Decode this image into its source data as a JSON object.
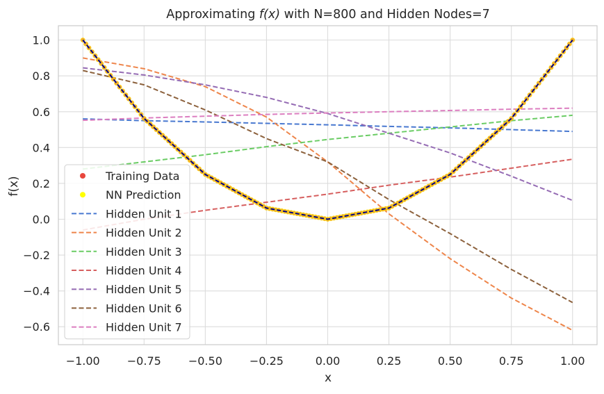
{
  "chart_data": {
    "type": "line",
    "title_prefix": "Approximating ",
    "title_math": "f(x)",
    "title_suffix": " with N=800 and Hidden Nodes=7",
    "xlabel": "x",
    "ylabel": "f(x)",
    "xlim": [
      -1.1,
      1.1
    ],
    "ylim": [
      -0.7,
      1.08
    ],
    "grid": true,
    "legend_position": "lower-left",
    "xticks": [
      -1.0,
      -0.75,
      -0.5,
      -0.25,
      0.0,
      0.25,
      0.5,
      0.75,
      1.0
    ],
    "xtick_labels": [
      "−1.00",
      "−0.75",
      "−0.50",
      "−0.25",
      "0.00",
      "0.25",
      "0.50",
      "0.75",
      "1.00"
    ],
    "yticks": [
      -0.6,
      -0.4,
      -0.2,
      0.0,
      0.2,
      0.4,
      0.6,
      0.8,
      1.0
    ],
    "ytick_labels": [
      "−0.6",
      "−0.4",
      "−0.2",
      "0.0",
      "0.2",
      "0.4",
      "0.6",
      "0.8",
      "1.0"
    ],
    "x": [
      -1.0,
      -0.75,
      -0.5,
      -0.25,
      0.0,
      0.25,
      0.5,
      0.75,
      1.0
    ],
    "training_data": {
      "name": "Training Data",
      "color": "#e8473d",
      "y": [
        1.0,
        0.5625,
        0.25,
        0.0625,
        0.0,
        0.0625,
        0.25,
        0.5625,
        1.0
      ]
    },
    "nn_prediction": {
      "name": "NN Prediction",
      "color": "#ffff00",
      "y": [
        1.0,
        0.5625,
        0.25,
        0.0625,
        0.0,
        0.0625,
        0.25,
        0.5625,
        1.0
      ]
    },
    "fit_line": {
      "color": "#00008b",
      "y": [
        1.0,
        0.5625,
        0.25,
        0.0625,
        0.0,
        0.0625,
        0.25,
        0.5625,
        1.0
      ]
    },
    "series": [
      {
        "name": "Hidden Unit 1",
        "color": "#4878d0",
        "values": [
          0.56,
          0.55,
          0.543,
          0.535,
          0.527,
          0.518,
          0.51,
          0.5,
          0.49
        ]
      },
      {
        "name": "Hidden Unit 2",
        "color": "#ee854a",
        "values": [
          0.9,
          0.84,
          0.74,
          0.57,
          0.32,
          0.03,
          -0.22,
          -0.44,
          -0.62
        ]
      },
      {
        "name": "Hidden Unit 3",
        "color": "#6acc64",
        "values": [
          0.28,
          0.32,
          0.36,
          0.405,
          0.445,
          0.48,
          0.515,
          0.55,
          0.58
        ]
      },
      {
        "name": "Hidden Unit 4",
        "color": "#d65f5f",
        "values": [
          -0.06,
          0.0,
          0.05,
          0.095,
          0.14,
          0.19,
          0.235,
          0.285,
          0.335
        ]
      },
      {
        "name": "Hidden Unit 5",
        "color": "#956cb4",
        "values": [
          0.845,
          0.805,
          0.75,
          0.68,
          0.59,
          0.48,
          0.37,
          0.24,
          0.105
        ]
      },
      {
        "name": "Hidden Unit 6",
        "color": "#8c613c",
        "values": [
          0.83,
          0.75,
          0.61,
          0.45,
          0.32,
          0.11,
          -0.08,
          -0.28,
          -0.465
        ]
      },
      {
        "name": "Hidden Unit 7",
        "color": "#dc7ec0",
        "values": [
          0.552,
          0.565,
          0.575,
          0.585,
          0.593,
          0.6,
          0.607,
          0.614,
          0.62
        ]
      }
    ]
  }
}
